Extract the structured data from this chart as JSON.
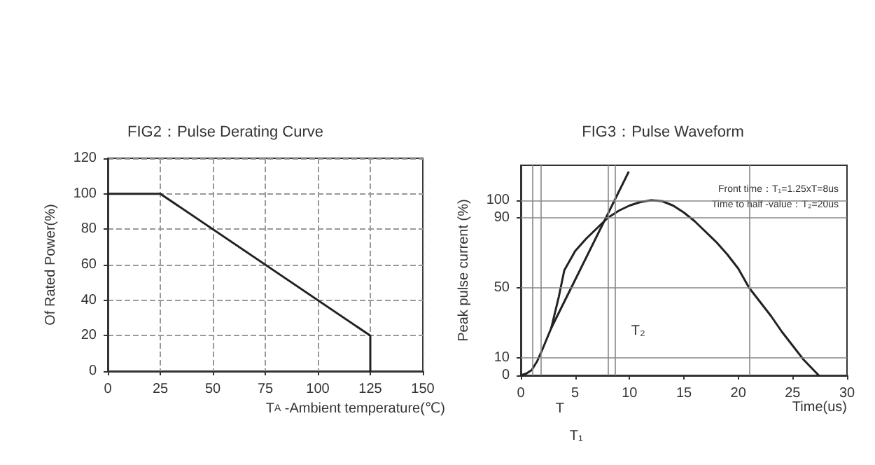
{
  "chart_data": [
    {
      "type": "line",
      "title": "FIG2：Pulse Derating Curve",
      "xlabel": "T$_{A}$ -Ambient temperature(℃)",
      "ylabel": "Of Rated Power(%)",
      "series": [
        {
          "color": "#222222",
          "x": [
            0,
            25,
            125,
            125
          ],
          "values": [
            100,
            100,
            20,
            0
          ]
        }
      ],
      "xlim": [
        0,
        150
      ],
      "xticks": [
        0,
        25,
        50,
        75,
        100,
        125,
        150
      ],
      "ylim": [
        0,
        120
      ],
      "yticks": [
        0,
        20,
        40,
        60,
        80,
        100,
        120
      ],
      "grid": true,
      "marker": "none",
      "line_style": "solid"
    },
    {
      "type": "line",
      "title": "FIG3：Pulse Waveform",
      "xlabel": "Time(us)",
      "ylabel": "Peak pulse current (%)",
      "series": [
        {
          "color": "#222222",
          "x": [
            0,
            0.5,
            1,
            1.5,
            2,
            2.8,
            3.5,
            4,
            5,
            6,
            7,
            8,
            9,
            10,
            11,
            12,
            13,
            14,
            15,
            16,
            17,
            18,
            19,
            20,
            21,
            22,
            23,
            24,
            25,
            26,
            27.4
          ],
          "values": [
            0,
            1,
            3,
            8,
            15,
            27,
            45,
            60,
            71,
            78,
            84,
            90,
            94,
            97,
            99,
            100,
            99.5,
            97,
            93,
            88,
            82,
            76,
            69,
            61,
            50,
            42,
            34,
            25,
            17,
            9,
            0
          ]
        },
        {
          "color": "#222222",
          "x": [
            2.8,
            9.9
          ],
          "values": [
            27,
            116
          ]
        }
      ],
      "xlim": [
        0,
        30
      ],
      "xticks": [
        0,
        5,
        10,
        15,
        20,
        25,
        30
      ],
      "ylim": [
        0,
        120
      ],
      "yticks": [
        0,
        10,
        50,
        90,
        100
      ],
      "marker": "none",
      "line_style": "solid",
      "ref_lines": [
        {
          "axis": "y",
          "value": 100,
          "color": "#888888"
        },
        {
          "axis": "y",
          "value": 90,
          "color": "#888888"
        },
        {
          "axis": "y",
          "value": 50,
          "color": "#888888"
        },
        {
          "axis": "y",
          "value": 10,
          "color": "#888888"
        },
        {
          "axis": "x",
          "value": 1,
          "color": "#888888"
        },
        {
          "axis": "x",
          "value": 1.8,
          "color": "#888888"
        },
        {
          "axis": "x",
          "value": 8,
          "color": "#888888"
        },
        {
          "axis": "x",
          "value": 8.7,
          "color": "#888888"
        },
        {
          "axis": "x",
          "value": 21,
          "color": "#888888"
        }
      ],
      "annotations": [
        "Front time：T₁=1.25xT=8us",
        "Time to half -value：T₂=20us",
        "T₂",
        "T",
        "T₁"
      ]
    }
  ]
}
